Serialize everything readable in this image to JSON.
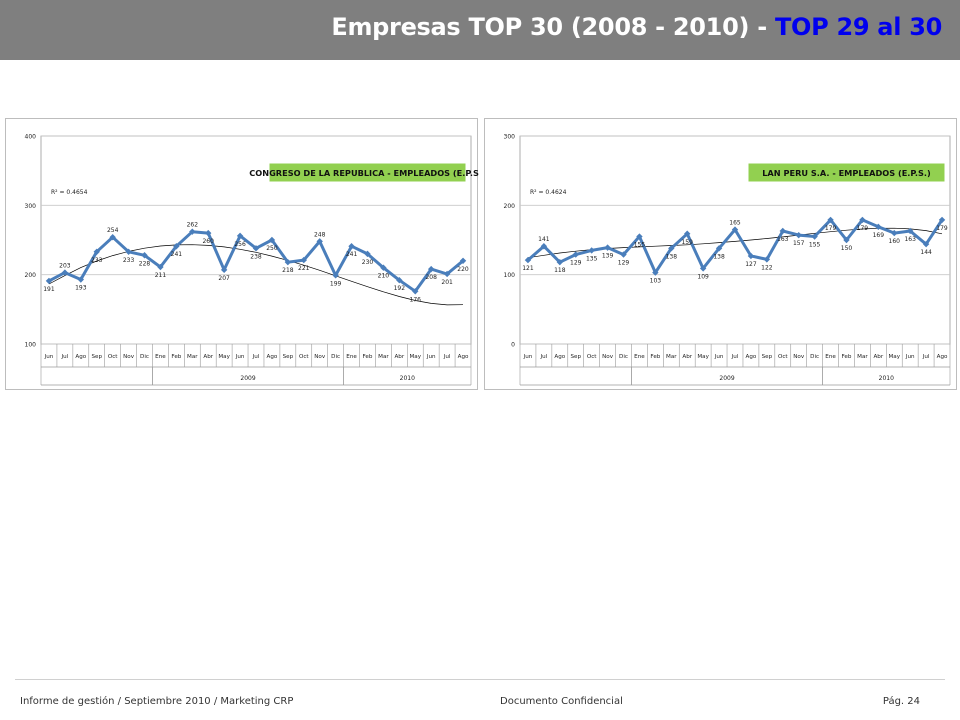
{
  "header": {
    "title_main": "Empresas TOP 30 (2008 - 2010) - ",
    "title_highlight": "TOP 29 al 30"
  },
  "colors": {
    "header_bg": "#7f7f7f",
    "title_text": "#ffffff",
    "title_highlight": "#0000ee",
    "series_line": "#4a7ebb",
    "legend_bg": "#92d050",
    "trend_line": "#000000"
  },
  "chart_data": [
    {
      "type": "line",
      "title": "CONGRESO DE LA REPUBLICA - EMPLEADOS (E.P.S.)",
      "r_squared": "R² = 0.4654",
      "ylim": [
        100,
        400
      ],
      "yticks": [
        100,
        200,
        300,
        400
      ],
      "grid": true,
      "trendline": "polynomial",
      "categories": [
        "Jun",
        "Jul",
        "Ago",
        "Sep",
        "Oct",
        "Nov",
        "Dic",
        "Ene",
        "Feb",
        "Mar",
        "Abr",
        "May",
        "Jun",
        "Jul",
        "Ago",
        "Sep",
        "Oct",
        "Nov",
        "Dic",
        "Ene",
        "Feb",
        "Mar",
        "Abr",
        "May",
        "Jun",
        "Jul",
        "Ago"
      ],
      "year_groups": [
        {
          "label": "",
          "start": 0,
          "end": 6
        },
        {
          "label": "2009",
          "start": 7,
          "end": 18
        },
        {
          "label": "2010",
          "start": 19,
          "end": 26
        }
      ],
      "values": [
        191,
        203,
        193,
        233,
        254,
        233,
        228,
        211,
        241,
        262,
        260,
        207,
        256,
        238,
        250,
        218,
        221,
        248,
        199,
        241,
        230,
        210,
        192,
        176,
        208,
        201,
        220
      ],
      "label_pos": [
        "b",
        "a",
        "b",
        "b",
        "a",
        "b",
        "b",
        "b",
        "b",
        "a",
        "b",
        "b",
        "b",
        "b",
        "b",
        "b",
        "b",
        "a",
        "b",
        "b",
        "b",
        "b",
        "b",
        "b",
        "b",
        "b",
        "b"
      ],
      "trend": [
        186.5,
        198.7,
        210.2,
        219.7,
        227.5,
        233.6,
        238.2,
        241.3,
        242.9,
        243.2,
        242.2,
        240.0,
        236.6,
        232.2,
        226.8,
        220.6,
        213.7,
        206.3,
        198.4,
        190.5,
        182.7,
        175.3,
        168.5,
        162.8,
        158.6,
        156.4,
        156.7
      ]
    },
    {
      "type": "line",
      "title": "LAN PERU S.A. - EMPLEADOS (E.P.S.)",
      "r_squared": "R² = 0.4624",
      "ylim": [
        0,
        300
      ],
      "yticks": [
        0,
        100,
        200,
        300
      ],
      "grid": true,
      "trendline": "polynomial",
      "categories": [
        "Jun",
        "Jul",
        "Ago",
        "Sep",
        "Oct",
        "Nov",
        "Dic",
        "Ene",
        "Feb",
        "Mar",
        "Abr",
        "May",
        "Jun",
        "Jul",
        "Ago",
        "Sep",
        "Oct",
        "Nov",
        "Dic",
        "Ene",
        "Feb",
        "Mar",
        "Abr",
        "May",
        "Jun",
        "Jul",
        "Ago"
      ],
      "year_groups": [
        {
          "label": "",
          "start": 0,
          "end": 6
        },
        {
          "label": "2009",
          "start": 7,
          "end": 18
        },
        {
          "label": "2010",
          "start": 19,
          "end": 26
        }
      ],
      "values": [
        121,
        141,
        118,
        129,
        135,
        139,
        129,
        155,
        103,
        138,
        159,
        109,
        138,
        165,
        127,
        122,
        163,
        157,
        155,
        179,
        150,
        179,
        169,
        160,
        163,
        144,
        179
      ],
      "label_pos": [
        "b",
        "a",
        "b",
        "b",
        "b",
        "b",
        "b",
        "b",
        "b",
        "b",
        "b",
        "b",
        "b",
        "a",
        "b",
        "b",
        "b",
        "b",
        "b",
        "b",
        "b",
        "b",
        "b",
        "b",
        "b",
        "b",
        "b"
      ],
      "trend": [
        124.5,
        128.0,
        131.2,
        133.9,
        136.1,
        137.8,
        139.1,
        140.1,
        141.0,
        142.0,
        143.1,
        144.5,
        146.2,
        148.0,
        150.0,
        152.1,
        154.4,
        157.0,
        159.6,
        162.0,
        164.2,
        165.9,
        166.9,
        167.0,
        166.0,
        163.5,
        159.0
      ]
    }
  ],
  "footer": {
    "left": "Informe de gestión / Septiembre 2010 / Marketing CRP",
    "center": "Documento Confidencial",
    "right": "Pág. 24"
  }
}
